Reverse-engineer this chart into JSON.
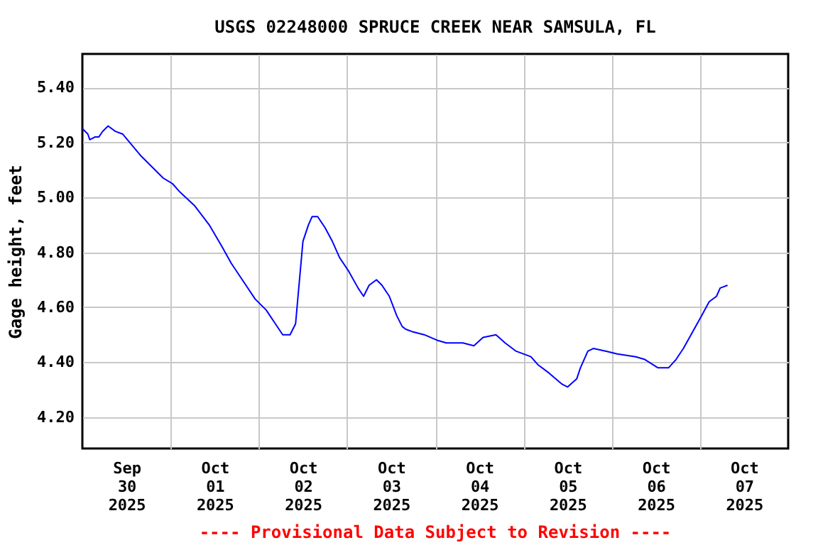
{
  "chart_data": {
    "type": "line",
    "title": "USGS 02248000 SPRUCE CREEK NEAR SAMSULA, FL",
    "ylabel": "Gage height, feet",
    "annotations": [
      "---- Provisional Data Subject to Revision ----"
    ],
    "x": [
      "2025-09-30T00:00",
      "2025-09-30T01:30",
      "2025-09-30T02:00",
      "2025-09-30T03:30",
      "2025-09-30T04:30",
      "2025-09-30T05:30",
      "2025-09-30T07:00",
      "2025-09-30T09:00",
      "2025-09-30T11:00",
      "2025-09-30T13:30",
      "2025-09-30T16:00",
      "2025-09-30T19:00",
      "2025-09-30T22:00",
      "2025-10-01T00:30",
      "2025-10-01T02:30",
      "2025-10-01T06:30",
      "2025-10-01T10:30",
      "2025-10-01T14:00",
      "2025-10-01T16:30",
      "2025-10-01T19:30",
      "2025-10-01T23:00",
      "2025-10-02T02:00",
      "2025-10-02T04:30",
      "2025-10-02T06:30",
      "2025-10-02T08:30",
      "2025-10-02T10:00",
      "2025-10-02T11:00",
      "2025-10-02T12:00",
      "2025-10-02T13:30",
      "2025-10-02T14:30",
      "2025-10-02T16:00",
      "2025-10-02T18:00",
      "2025-10-02T20:00",
      "2025-10-02T22:00",
      "2025-10-03T00:30",
      "2025-10-03T03:00",
      "2025-10-03T04:30",
      "2025-10-03T06:00",
      "2025-10-03T08:00",
      "2025-10-03T09:30",
      "2025-10-03T11:30",
      "2025-10-03T13:30",
      "2025-10-03T15:00",
      "2025-10-03T16:00",
      "2025-10-03T18:00",
      "2025-10-03T21:00",
      "2025-10-04T00:30",
      "2025-10-04T03:00",
      "2025-10-04T07:30",
      "2025-10-04T10:30",
      "2025-10-04T13:00",
      "2025-10-04T16:30",
      "2025-10-04T19:00",
      "2025-10-04T22:00",
      "2025-10-05T02:00",
      "2025-10-05T04:00",
      "2025-10-05T07:00",
      "2025-10-05T10:30",
      "2025-10-05T12:00",
      "2025-10-05T14:30",
      "2025-10-05T15:30",
      "2025-10-05T17:30",
      "2025-10-05T19:00",
      "2025-10-05T22:30",
      "2025-10-06T01:30",
      "2025-10-06T06:30",
      "2025-10-06T09:00",
      "2025-10-06T12:30",
      "2025-10-06T15:30",
      "2025-10-06T17:30",
      "2025-10-06T19:30",
      "2025-10-06T22:00",
      "2025-10-07T00:30",
      "2025-10-07T02:30",
      "2025-10-07T04:30",
      "2025-10-07T05:30",
      "2025-10-07T07:30"
    ],
    "series": [
      {
        "color": "#0000ff",
        "values": [
          5.25,
          5.23,
          5.21,
          5.22,
          5.22,
          5.24,
          5.26,
          5.24,
          5.23,
          5.19,
          5.15,
          5.11,
          5.07,
          5.05,
          5.02,
          4.97,
          4.9,
          4.82,
          4.76,
          4.7,
          4.63,
          4.59,
          4.54,
          4.5,
          4.5,
          4.54,
          4.69,
          4.84,
          4.9,
          4.93,
          4.93,
          4.89,
          4.84,
          4.78,
          4.73,
          4.67,
          4.64,
          4.68,
          4.7,
          4.68,
          4.64,
          4.57,
          4.53,
          4.52,
          4.51,
          4.5,
          4.48,
          4.47,
          4.47,
          4.46,
          4.49,
          4.5,
          4.47,
          4.44,
          4.42,
          4.39,
          4.36,
          4.32,
          4.31,
          4.34,
          4.38,
          4.44,
          4.45,
          4.44,
          4.43,
          4.42,
          4.41,
          4.38,
          4.38,
          4.41,
          4.45,
          4.51,
          4.57,
          4.62,
          4.64,
          4.67,
          4.68
        ]
      }
    ],
    "xlim": [
      "2025-09-30T00:00",
      "2025-10-08T00:00"
    ],
    "xticks": [
      {
        "value": "2025-09-30T12:00",
        "label": "Sep\n30\n2025"
      },
      {
        "value": "2025-10-01T00:00",
        "label": null
      },
      {
        "value": "2025-10-01T12:00",
        "label": "Oct\n01\n2025"
      },
      {
        "value": "2025-10-02T00:00",
        "label": null
      },
      {
        "value": "2025-10-02T12:00",
        "label": "Oct\n02\n2025"
      },
      {
        "value": "2025-10-03T00:00",
        "label": null
      },
      {
        "value": "2025-10-03T12:00",
        "label": "Oct\n03\n2025"
      },
      {
        "value": "2025-10-04T00:00",
        "label": null
      },
      {
        "value": "2025-10-04T12:00",
        "label": "Oct\n04\n2025"
      },
      {
        "value": "2025-10-05T00:00",
        "label": null
      },
      {
        "value": "2025-10-05T12:00",
        "label": "Oct\n05\n2025"
      },
      {
        "value": "2025-10-06T00:00",
        "label": null
      },
      {
        "value": "2025-10-06T12:00",
        "label": "Oct\n06\n2025"
      },
      {
        "value": "2025-10-07T00:00",
        "label": null
      },
      {
        "value": "2025-10-07T12:00",
        "label": "Oct\n07\n2025"
      }
    ],
    "ylim": [
      4.086,
      5.522
    ],
    "yticks": [
      {
        "value": 4.2,
        "label": "4.20"
      },
      {
        "value": 4.4,
        "label": "4.40"
      },
      {
        "value": 4.6,
        "label": "4.60"
      },
      {
        "value": 4.8,
        "label": "4.80"
      },
      {
        "value": 5.0,
        "label": "5.00"
      },
      {
        "value": 5.2,
        "label": "5.20"
      },
      {
        "value": 5.4,
        "label": "5.40"
      }
    ],
    "grid": true,
    "line_style": "solid",
    "marker": "none"
  }
}
